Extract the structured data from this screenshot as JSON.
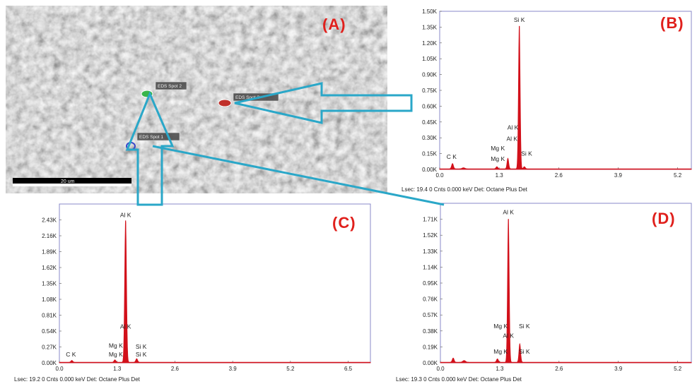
{
  "panels": {
    "a_label": "(A)",
    "b_label": "(B)",
    "c_label": "(C)",
    "d_label": "(D)"
  },
  "sem": {
    "spot_labels": [
      "EDS Spot 1",
      "EDS Spot 2",
      "EDS Spot 3"
    ],
    "scale_bar_label": "20 um",
    "colors": {
      "spot1": "#3a48c8",
      "spot2": "#3ab54a",
      "spot3": "#c0302a",
      "callout": "#2aa7c8"
    }
  },
  "chart_data": [
    {
      "id": "B",
      "type": "line",
      "title": "",
      "xlabel": "",
      "ylabel": "",
      "xlim": [
        0.0,
        5.5
      ],
      "ylim": [
        0,
        1.5
      ],
      "x_ticks": [
        "0.0",
        "1.3",
        "2.6",
        "3.9",
        "5.2"
      ],
      "y_ticks": [
        "0.00K",
        "0.15K",
        "0.30K",
        "0.45K",
        "0.60K",
        "0.75K",
        "0.90K",
        "1.05K",
        "1.20K",
        "1.35K",
        "1.50K"
      ],
      "series": [
        {
          "peaks": [
            {
              "x": 0.28,
              "y": 0.05,
              "w": 0.02
            },
            {
              "x": 0.52,
              "y": 0.01,
              "w": 0.03
            },
            {
              "x": 1.25,
              "y": 0.02,
              "w": 0.02
            },
            {
              "x": 1.49,
              "y": 0.1,
              "w": 0.018
            },
            {
              "x": 1.74,
              "y": 1.36,
              "w": 0.018
            },
            {
              "x": 1.85,
              "y": 0.02,
              "w": 0.02
            }
          ]
        }
      ],
      "annotations": [
        {
          "text": "Si K",
          "x": 1.74,
          "y": 1.4
        },
        {
          "text": "Al K",
          "x": 1.6,
          "y": 0.38
        },
        {
          "text": "Al K",
          "x": 1.58,
          "y": 0.27
        },
        {
          "text": "Mg K",
          "x": 1.27,
          "y": 0.18
        },
        {
          "text": "Mg K",
          "x": 1.27,
          "y": 0.08
        },
        {
          "text": "Si K",
          "x": 1.9,
          "y": 0.13
        },
        {
          "text": "C  K",
          "x": 0.26,
          "y": 0.1
        }
      ],
      "footer": "Lsec: 19.4 0 Cnts  0.000 keV Det: Octane Plus Det"
    },
    {
      "id": "C",
      "type": "line",
      "title": "",
      "xlabel": "",
      "ylabel": "",
      "xlim": [
        0.0,
        7.0
      ],
      "ylim": [
        0,
        2.7
      ],
      "x_ticks": [
        "0.0",
        "1.3",
        "2.6",
        "3.9",
        "5.2",
        "6.5"
      ],
      "y_ticks": [
        "0.00K",
        "0.27K",
        "0.54K",
        "0.81K",
        "1.08K",
        "1.35K",
        "1.62K",
        "1.89K",
        "2.16K",
        "2.43K"
      ],
      "series": [
        {
          "peaks": [
            {
              "x": 0.28,
              "y": 0.03,
              "w": 0.02
            },
            {
              "x": 1.25,
              "y": 0.04,
              "w": 0.02
            },
            {
              "x": 1.49,
              "y": 2.42,
              "w": 0.02
            },
            {
              "x": 1.74,
              "y": 0.06,
              "w": 0.02
            }
          ]
        }
      ],
      "annotations": [
        {
          "text": "Al K",
          "x": 1.49,
          "y": 2.48
        },
        {
          "text": "Al K",
          "x": 1.49,
          "y": 0.58
        },
        {
          "text": "Mg K",
          "x": 1.27,
          "y": 0.26
        },
        {
          "text": "Si K",
          "x": 1.84,
          "y": 0.24
        },
        {
          "text": "Mg K",
          "x": 1.27,
          "y": 0.11
        },
        {
          "text": "Si K",
          "x": 1.84,
          "y": 0.11
        },
        {
          "text": "C  K",
          "x": 0.26,
          "y": 0.11
        }
      ],
      "footer": "Lsec: 19.2 0 Cnts  0.000 keV Det: Octane Plus Det"
    },
    {
      "id": "D",
      "type": "line",
      "title": "",
      "xlabel": "",
      "ylabel": "",
      "xlim": [
        0.0,
        5.5
      ],
      "ylim": [
        0,
        1.9
      ],
      "x_ticks": [
        "0.0",
        "1.3",
        "2.6",
        "3.9",
        "5.2"
      ],
      "y_ticks": [
        "0.00K",
        "0.19K",
        "0.38K",
        "0.57K",
        "0.76K",
        "0.95K",
        "1.14K",
        "1.33K",
        "1.52K",
        "1.71K"
      ],
      "series": [
        {
          "peaks": [
            {
              "x": 0.28,
              "y": 0.05,
              "w": 0.02
            },
            {
              "x": 0.52,
              "y": 0.02,
              "w": 0.03
            },
            {
              "x": 1.25,
              "y": 0.04,
              "w": 0.02
            },
            {
              "x": 1.49,
              "y": 1.71,
              "w": 0.018
            },
            {
              "x": 1.74,
              "y": 0.22,
              "w": 0.018
            }
          ]
        }
      ],
      "annotations": [
        {
          "text": "Al K",
          "x": 1.49,
          "y": 1.77
        },
        {
          "text": "Mg K",
          "x": 1.32,
          "y": 0.41
        },
        {
          "text": "Si K",
          "x": 1.84,
          "y": 0.41
        },
        {
          "text": "Al K",
          "x": 1.49,
          "y": 0.3
        },
        {
          "text": "Mg K",
          "x": 1.32,
          "y": 0.11
        },
        {
          "text": "Si K",
          "x": 1.84,
          "y": 0.11
        }
      ],
      "footer": "Lsec: 19.3 0 Cnts  0.000 keV Det: Octane Plus Det"
    }
  ],
  "colors": {
    "spectrum": "#d2101a",
    "axis_frame": "#8a8ac8",
    "tick_text": "#222222"
  }
}
